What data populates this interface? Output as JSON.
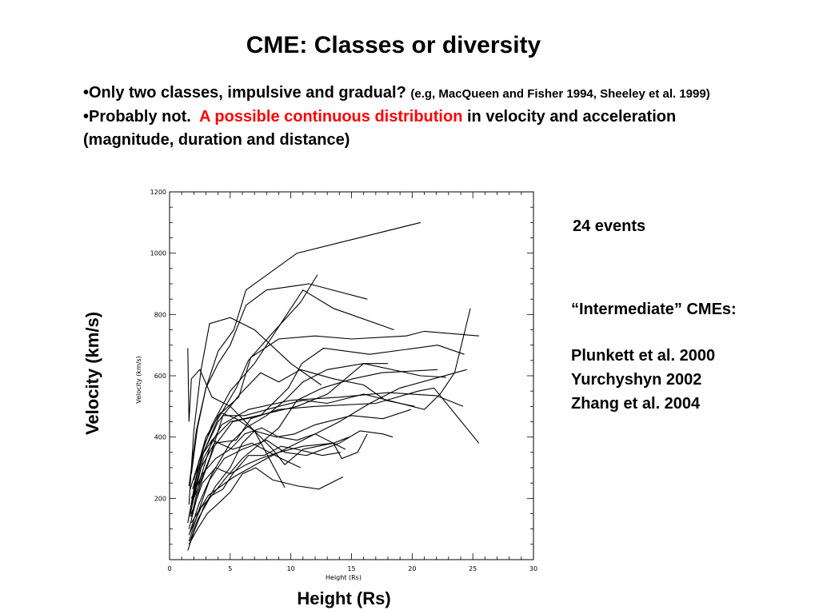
{
  "slide": {
    "title": "CME: Classes or diversity",
    "bullet1_main": "•Only two classes, impulsive and gradual?",
    "bullet1_cite": "(e.g, MacQueen and Fisher 1994, Sheeley et al. 1999)",
    "bullet2_prefix": "•Probably not.",
    "bullet2_red": "A possible continuous distribution",
    "bullet2_rest": "in velocity and acceleration (magnitude, duration and distance)",
    "events": "24 events",
    "intermediate": "“Intermediate” CMEs:",
    "refs": [
      "Plunkett et al. 2000",
      "Yurchyshyn 2002",
      "Zhang et al. 2004"
    ],
    "big_ylabel": "Velocity (km/s)",
    "big_xlabel": "Height (Rs)"
  },
  "colors": {
    "text": "#000000",
    "highlight": "#ff0000",
    "line": "#000000"
  },
  "chart_data": {
    "type": "line",
    "xlabel": "Height (Rs)",
    "ylabel": "Velocity (km/s)",
    "xlim": [
      0,
      30
    ],
    "ylim": [
      0,
      1200
    ],
    "xticks": [
      0,
      5,
      10,
      15,
      20,
      25,
      30
    ],
    "yticks": [
      200,
      400,
      600,
      800,
      1000,
      1200
    ],
    "series": [
      {
        "points": [
          [
            1.5,
            690
          ],
          [
            1.6,
            450
          ],
          [
            1.8,
            590
          ],
          [
            2.5,
            620
          ],
          [
            3.5,
            530
          ],
          [
            5,
            500
          ],
          [
            7,
            420
          ],
          [
            9.5,
            235
          ]
        ]
      },
      {
        "points": [
          [
            1.6,
            180
          ],
          [
            2.0,
            420
          ],
          [
            2.6,
            620
          ],
          [
            3.3,
            770
          ],
          [
            5,
            790
          ],
          [
            7,
            750
          ],
          [
            10,
            640
          ],
          [
            12.5,
            570
          ]
        ]
      },
      {
        "points": [
          [
            1.8,
            280
          ],
          [
            2.3,
            430
          ],
          [
            3,
            560
          ],
          [
            4,
            680
          ],
          [
            5.3,
            750
          ],
          [
            6.3,
            880
          ],
          [
            10.5,
            1000
          ],
          [
            20.7,
            1100
          ]
        ]
      },
      {
        "points": [
          [
            1.6,
            240
          ],
          [
            2.2,
            420
          ],
          [
            3,
            560
          ],
          [
            4,
            640
          ],
          [
            5,
            700
          ],
          [
            6.3,
            830
          ],
          [
            8,
            880
          ],
          [
            11.5,
            900
          ],
          [
            16.3,
            850
          ]
        ]
      },
      {
        "points": [
          [
            1.7,
            140
          ],
          [
            2.4,
            320
          ],
          [
            3.5,
            440
          ],
          [
            5,
            550
          ],
          [
            7,
            640
          ],
          [
            9,
            760
          ],
          [
            11,
            880
          ],
          [
            13.5,
            820
          ],
          [
            18.5,
            750
          ]
        ]
      },
      {
        "points": [
          [
            1.9,
            200
          ],
          [
            2.8,
            350
          ],
          [
            4,
            460
          ],
          [
            5.5,
            560
          ],
          [
            6.5,
            650
          ],
          [
            8.5,
            740
          ],
          [
            10.8,
            840
          ],
          [
            12.2,
            930
          ]
        ]
      },
      {
        "points": [
          [
            1.5,
            120
          ],
          [
            2.1,
            250
          ],
          [
            2.9,
            380
          ],
          [
            4,
            470
          ],
          [
            5.7,
            530
          ],
          [
            6.7,
            660
          ],
          [
            9,
            720
          ],
          [
            12,
            730
          ],
          [
            15,
            720
          ],
          [
            19.5,
            730
          ],
          [
            21,
            745
          ],
          [
            25.5,
            730
          ]
        ]
      },
      {
        "points": [
          [
            1.8,
            180
          ],
          [
            2.8,
            330
          ],
          [
            4.3,
            440
          ],
          [
            6.5,
            490
          ],
          [
            10,
            520
          ],
          [
            14,
            530
          ],
          [
            18,
            545
          ],
          [
            22,
            535
          ],
          [
            24.2,
            500
          ]
        ]
      },
      {
        "points": [
          [
            1.8,
            120
          ],
          [
            3.2,
            210
          ],
          [
            5.3,
            270
          ],
          [
            8,
            330
          ],
          [
            11,
            390
          ],
          [
            14,
            450
          ],
          [
            16.5,
            510
          ],
          [
            19,
            560
          ],
          [
            24.5,
            620
          ]
        ]
      },
      {
        "points": [
          [
            2.0,
            200
          ],
          [
            3.3,
            330
          ],
          [
            4.4,
            470
          ],
          [
            6.2,
            470
          ],
          [
            9,
            500
          ],
          [
            11,
            520
          ],
          [
            13,
            510
          ],
          [
            16,
            540
          ],
          [
            19,
            510
          ],
          [
            21,
            490
          ],
          [
            22.3,
            540
          ],
          [
            23.5,
            610
          ],
          [
            24.8,
            820
          ]
        ]
      },
      {
        "points": [
          [
            1.7,
            150
          ],
          [
            2.6,
            300
          ],
          [
            3.7,
            380
          ],
          [
            5.5,
            390
          ],
          [
            6.7,
            460
          ],
          [
            9,
            490
          ],
          [
            12,
            500
          ],
          [
            17,
            510
          ],
          [
            20.5,
            550
          ],
          [
            21.8,
            560
          ],
          [
            25.5,
            380
          ]
        ]
      },
      {
        "points": [
          [
            1.8,
            140
          ],
          [
            2.5,
            260
          ],
          [
            3.5,
            390
          ],
          [
            5,
            450
          ],
          [
            7.3,
            470
          ],
          [
            10.5,
            500
          ],
          [
            13,
            540
          ],
          [
            16,
            640
          ],
          [
            20.7,
            600
          ],
          [
            22.8,
            595
          ]
        ]
      },
      {
        "points": [
          [
            1.6,
            80
          ],
          [
            2.4,
            180
          ],
          [
            3.5,
            280
          ],
          [
            5,
            380
          ],
          [
            6.3,
            430
          ],
          [
            8,
            470
          ],
          [
            9.5,
            520
          ],
          [
            11,
            580
          ],
          [
            13,
            620
          ],
          [
            16,
            640
          ],
          [
            18,
            640
          ]
        ]
      },
      {
        "points": [
          [
            1.7,
            60
          ],
          [
            2.3,
            130
          ],
          [
            3.3,
            200
          ],
          [
            4.5,
            260
          ],
          [
            6,
            330
          ],
          [
            7.5,
            380
          ],
          [
            9,
            430
          ],
          [
            10.5,
            520
          ],
          [
            12.6,
            560
          ],
          [
            15.1,
            590
          ],
          [
            17.5,
            610
          ],
          [
            22.1,
            620
          ]
        ]
      },
      {
        "points": [
          [
            1.6,
            100
          ],
          [
            2.5,
            240
          ],
          [
            3.7,
            370
          ],
          [
            5.2,
            450
          ],
          [
            7.5,
            470
          ],
          [
            9.8,
            560
          ],
          [
            10.9,
            640
          ],
          [
            12.7,
            690
          ],
          [
            16.5,
            670
          ],
          [
            22.1,
            700
          ],
          [
            24.3,
            670
          ]
        ]
      },
      {
        "points": [
          [
            1.9,
            230
          ],
          [
            2.8,
            350
          ],
          [
            4,
            450
          ],
          [
            5.8,
            540
          ],
          [
            7.5,
            610
          ],
          [
            9,
            580
          ],
          [
            10.8,
            620
          ],
          [
            13.5,
            590
          ],
          [
            16,
            570
          ],
          [
            17.8,
            520
          ],
          [
            20.2,
            500
          ]
        ]
      },
      {
        "points": [
          [
            1.5,
            30
          ],
          [
            2,
            90
          ],
          [
            2.8,
            170
          ],
          [
            3.8,
            240
          ],
          [
            5,
            300
          ],
          [
            6,
            380
          ],
          [
            7,
            420
          ],
          [
            8.8,
            400
          ],
          [
            10.3,
            410
          ],
          [
            12,
            440
          ],
          [
            15,
            470
          ],
          [
            17.6,
            460
          ],
          [
            19.9,
            490
          ]
        ]
      },
      {
        "points": [
          [
            1.6,
            60
          ],
          [
            2.4,
            160
          ],
          [
            3.3,
            260
          ],
          [
            4.5,
            330
          ],
          [
            6,
            360
          ],
          [
            8,
            390
          ],
          [
            9.5,
            350
          ],
          [
            11.3,
            340
          ],
          [
            14,
            380
          ],
          [
            15.7,
            420
          ],
          [
            17.6,
            410
          ],
          [
            18.4,
            400
          ]
        ]
      },
      {
        "points": [
          [
            1.8,
            150
          ],
          [
            2.7,
            250
          ],
          [
            3.8,
            300
          ],
          [
            5,
            280
          ],
          [
            6.3,
            310
          ],
          [
            7.5,
            330
          ],
          [
            9,
            350
          ],
          [
            11,
            370
          ],
          [
            13.5,
            380
          ],
          [
            14.8,
            400
          ]
        ]
      },
      {
        "points": [
          [
            2.0,
            260
          ],
          [
            3,
            400
          ],
          [
            4.2,
            480
          ],
          [
            5.5,
            460
          ],
          [
            7,
            420
          ],
          [
            8.5,
            360
          ],
          [
            9.5,
            310
          ],
          [
            11,
            360
          ],
          [
            13.5,
            380
          ],
          [
            14.2,
            330
          ],
          [
            15.5,
            350
          ],
          [
            16.3,
            410
          ]
        ]
      },
      {
        "points": [
          [
            1.8,
            200
          ],
          [
            2.7,
            280
          ],
          [
            3.8,
            330
          ],
          [
            5,
            360
          ],
          [
            6.2,
            410
          ],
          [
            7.6,
            430
          ],
          [
            9,
            400
          ],
          [
            10.5,
            390
          ],
          [
            12,
            410
          ],
          [
            14.5,
            360
          ]
        ]
      },
      {
        "points": [
          [
            1.7,
            230
          ],
          [
            2.5,
            330
          ],
          [
            3.5,
            390
          ],
          [
            5.2,
            360
          ],
          [
            6.8,
            380
          ],
          [
            9.2,
            330
          ],
          [
            10.8,
            300
          ]
        ]
      },
      {
        "points": [
          [
            1.6,
            50
          ],
          [
            2.3,
            100
          ],
          [
            3.1,
            150
          ],
          [
            4.2,
            190
          ],
          [
            5,
            220
          ],
          [
            6,
            280
          ],
          [
            7.1,
            300
          ],
          [
            8.5,
            260
          ],
          [
            10.6,
            240
          ],
          [
            12.3,
            230
          ],
          [
            14.3,
            270
          ]
        ]
      },
      {
        "points": [
          [
            1.7,
            90
          ],
          [
            2.6,
            170
          ],
          [
            3.5,
            210
          ],
          [
            4.4,
            230
          ],
          [
            5.2,
            280
          ],
          [
            6.5,
            340
          ],
          [
            7.8,
            340
          ],
          [
            9.2,
            370
          ],
          [
            10.5,
            360
          ],
          [
            12.6,
            340
          ],
          [
            14.1,
            350
          ]
        ]
      }
    ]
  }
}
